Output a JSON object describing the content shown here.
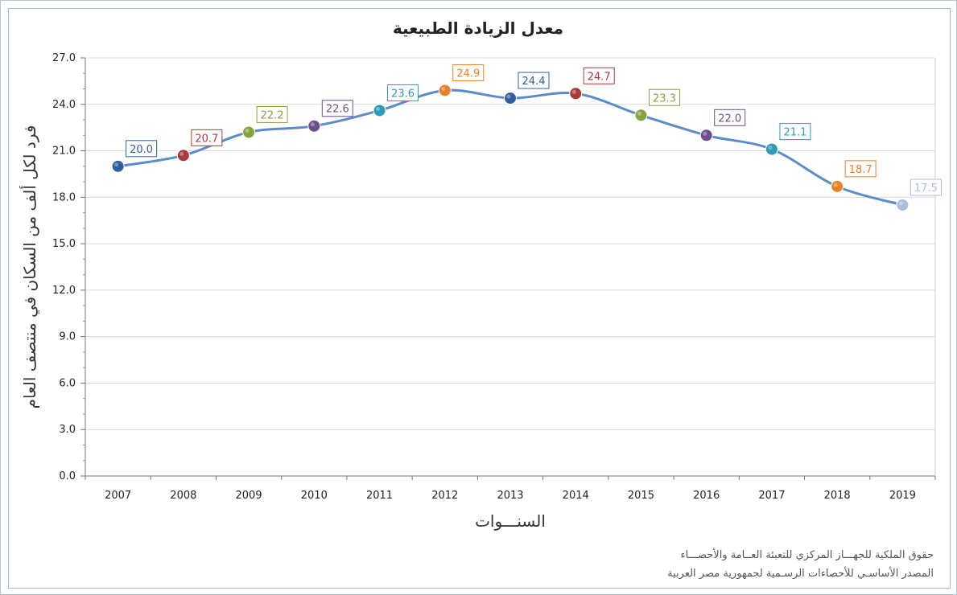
{
  "chart_data": {
    "type": "line",
    "title": "معدل الزيادة الطبيعية",
    "xlabel": "السنـــوات",
    "ylabel": "فرد لكل ألف من السكان في منتصف العام",
    "categories": [
      "2007",
      "2008",
      "2009",
      "2010",
      "2011",
      "2012",
      "2013",
      "2014",
      "2015",
      "2016",
      "2017",
      "2018",
      "2019"
    ],
    "values": [
      20.0,
      20.7,
      22.2,
      22.6,
      23.6,
      24.9,
      24.4,
      24.7,
      23.3,
      22.0,
      21.1,
      18.7,
      17.5
    ],
    "value_labels": [
      "20.0",
      "20.7",
      "22.2",
      "22.6",
      "23.6",
      "24.9",
      "24.4",
      "24.7",
      "23.3",
      "22.0",
      "21.1",
      "18.7",
      "17.5"
    ],
    "ylim": [
      0,
      27
    ],
    "yticks": [
      "0.0",
      "3.0",
      "6.0",
      "9.0",
      "12.0",
      "15.0",
      "18.0",
      "21.0",
      "24.0",
      "27.0"
    ],
    "grid": true,
    "legend": "none",
    "line_color": "#5b8bc9",
    "point_colors": [
      "#2f5f9e",
      "#a93a3a",
      "#86a33e",
      "#6b4e8c",
      "#2c9bb5",
      "#e8812a",
      "#2f5f9e",
      "#a93a3a",
      "#86a33e",
      "#6b4e8c",
      "#2c9bb5",
      "#e8812a",
      "#a8bfe0"
    ]
  },
  "footer": {
    "line1": "حقوق الملكية للجهـــاز المركزي للتعبئة العــامة والأحصـــاء",
    "line2": "المصدر الأساسـي للأحصاءات الرسـمية لجمهورية مصر العربية"
  }
}
